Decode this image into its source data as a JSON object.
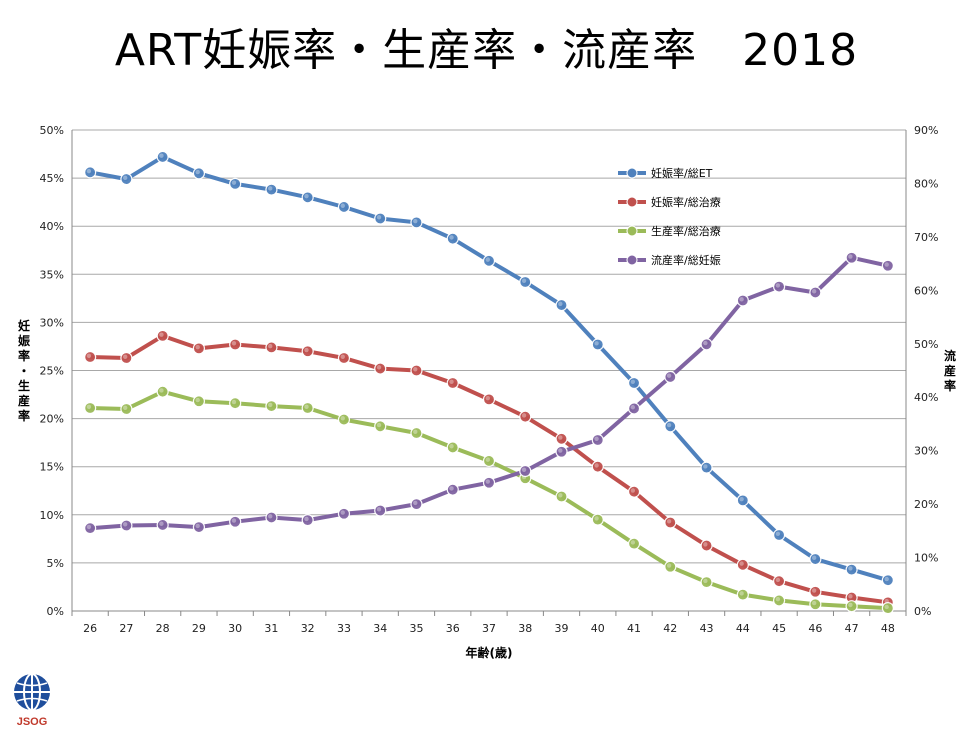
{
  "title": "ART妊娠率・生産率・流産率　2018",
  "logo_text": "JSOG",
  "chart_data": {
    "type": "line",
    "x": [
      26,
      27,
      28,
      29,
      30,
      31,
      32,
      33,
      34,
      35,
      36,
      37,
      38,
      39,
      40,
      41,
      42,
      43,
      44,
      45,
      46,
      47,
      48
    ],
    "xlabel": "年齢(歳)",
    "ylabel": "妊娠率・生産率",
    "y2label": "流産率",
    "ylim": [
      0,
      50
    ],
    "y2lim": [
      0,
      90
    ],
    "yticks": [
      "0%",
      "5%",
      "10%",
      "15%",
      "20%",
      "25%",
      "30%",
      "35%",
      "40%",
      "45%",
      "50%"
    ],
    "y2ticks": [
      "0%",
      "10%",
      "20%",
      "30%",
      "40%",
      "50%",
      "60%",
      "70%",
      "80%",
      "90%"
    ],
    "grid": true,
    "legend": "top-right",
    "series": [
      {
        "name": "妊娠率/総ET",
        "color": "#4f81bd",
        "axis": "left",
        "values": [
          45.6,
          44.9,
          47.2,
          45.5,
          44.4,
          43.8,
          43.0,
          42.0,
          40.8,
          40.4,
          38.7,
          36.4,
          34.2,
          31.8,
          27.7,
          23.7,
          19.2,
          14.9,
          11.5,
          7.9,
          5.4,
          4.3,
          3.2
        ]
      },
      {
        "name": "妊娠率/総治療",
        "color": "#c0504d",
        "axis": "left",
        "values": [
          26.4,
          26.3,
          28.6,
          27.3,
          27.7,
          27.4,
          27.0,
          26.3,
          25.2,
          25.0,
          23.7,
          22.0,
          20.2,
          17.9,
          15.0,
          12.4,
          9.2,
          6.8,
          4.8,
          3.1,
          2.0,
          1.4,
          0.9
        ]
      },
      {
        "name": "生産率/総治療",
        "color": "#9bbb59",
        "axis": "left",
        "values": [
          21.1,
          21.0,
          22.8,
          21.8,
          21.6,
          21.3,
          21.1,
          19.9,
          19.2,
          18.5,
          17.0,
          15.6,
          13.8,
          11.9,
          9.5,
          7.0,
          4.6,
          3.0,
          1.7,
          1.1,
          0.7,
          0.5,
          0.3
        ]
      },
      {
        "name": "流産率/総妊娠",
        "color": "#8064a2",
        "axis": "right",
        "values": [
          15.5,
          16.0,
          16.1,
          15.7,
          16.7,
          17.5,
          17.0,
          18.2,
          18.8,
          20.0,
          22.7,
          24.0,
          26.2,
          29.8,
          32.0,
          37.9,
          43.8,
          49.9,
          58.1,
          60.7,
          59.6,
          66.1,
          64.6
        ]
      }
    ]
  }
}
